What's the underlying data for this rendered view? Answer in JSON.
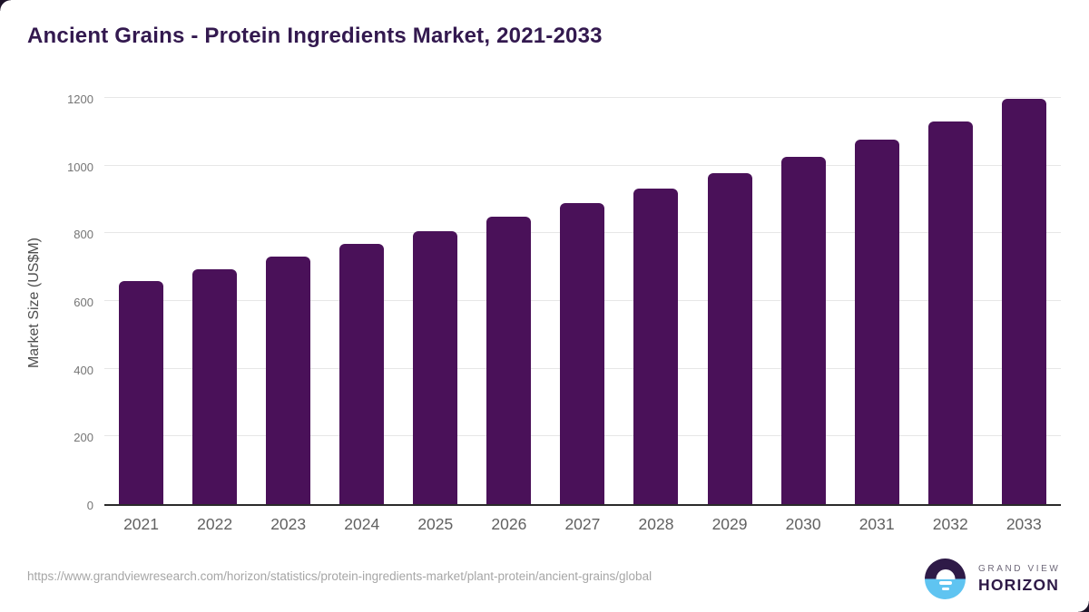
{
  "title": "Ancient Grains - Protein Ingredients Market, 2021-2033",
  "chart_data": {
    "type": "bar",
    "categories": [
      "2021",
      "2022",
      "2023",
      "2024",
      "2025",
      "2026",
      "2027",
      "2028",
      "2029",
      "2030",
      "2031",
      "2032",
      "2033"
    ],
    "values": [
      660,
      695,
      732,
      768,
      807,
      848,
      890,
      933,
      978,
      1027,
      1077,
      1131,
      1197
    ],
    "title": "Ancient Grains - Protein Ingredients Market, 2021-2033",
    "xlabel": "",
    "ylabel": "Market Size (US$M)",
    "ylim": [
      0,
      1200
    ],
    "yticks": [
      0,
      200,
      400,
      600,
      800,
      1000,
      1200
    ],
    "grid": true,
    "legend": "none",
    "bar_color": "#4a1159"
  },
  "colors": {
    "title": "#33194f",
    "bar": "#4a1159",
    "gridline": "#e7e7e7",
    "axis_line": "#2b2b2b",
    "tick_label": "#757575",
    "corner_decoration": "#1d1329",
    "logo_dark": "#2e1a47",
    "logo_blue": "#5fc4f1"
  },
  "footer": {
    "source_url": "https://www.grandviewresearch.com/horizon/statistics/protein-ingredients-market/plant-protein/ancient-grains/global",
    "logo_line1": "GRAND VIEW",
    "logo_line2": "HORIZON"
  }
}
